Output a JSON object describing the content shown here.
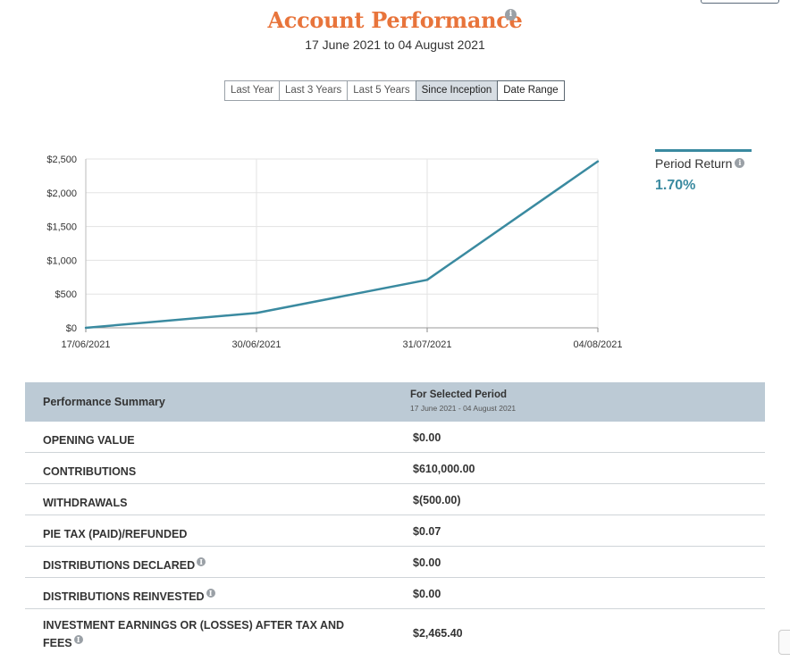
{
  "page": {
    "title": "Account Performance",
    "subtitle": "17 June 2021 to 04 August 2021",
    "info_glyph": "i"
  },
  "range_buttons": [
    {
      "label": "Last Year",
      "active": false
    },
    {
      "label": "Last 3 Years",
      "active": false
    },
    {
      "label": "Last 5 Years",
      "active": false
    },
    {
      "label": "Since Inception",
      "active": true
    },
    {
      "label": "Date Range",
      "active": false
    }
  ],
  "legend": {
    "label": "Period Return",
    "value": "1.70%",
    "color": "#3a8aa0"
  },
  "chart_data": {
    "type": "line",
    "x": [
      "17/06/2021",
      "30/06/2021",
      "31/07/2021",
      "04/08/2021"
    ],
    "series": [
      {
        "values": [
          0,
          220,
          710,
          2465
        ]
      }
    ],
    "y_ticks": [
      "$0",
      "$500",
      "$1,000",
      "$1,500",
      "$2,000",
      "$2,500"
    ],
    "ylim": [
      0,
      2500
    ],
    "grid": true,
    "line_color": "#3a8aa0"
  },
  "summary": {
    "header_left": "Performance Summary",
    "header_right_title": "For Selected Period",
    "header_right_sub": "17 June 2021 - 04 August 2021",
    "rows": [
      {
        "label": "OPENING VALUE",
        "value": "$0.00",
        "info": false
      },
      {
        "label": "CONTRIBUTIONS",
        "value": "$610,000.00",
        "info": false
      },
      {
        "label": "WITHDRAWALS",
        "value": "$(500.00)",
        "info": false
      },
      {
        "label": "PIE TAX (PAID)/REFUNDED",
        "value": "$0.07",
        "info": false
      },
      {
        "label": "DISTRIBUTIONS DECLARED",
        "value": "$0.00",
        "info": true
      },
      {
        "label": "DISTRIBUTIONS REINVESTED",
        "value": "$0.00",
        "info": true
      },
      {
        "label": "INVESTMENT EARNINGS OR (LOSSES) AFTER TAX AND FEES",
        "value": "$2,465.40",
        "info": true
      }
    ]
  }
}
